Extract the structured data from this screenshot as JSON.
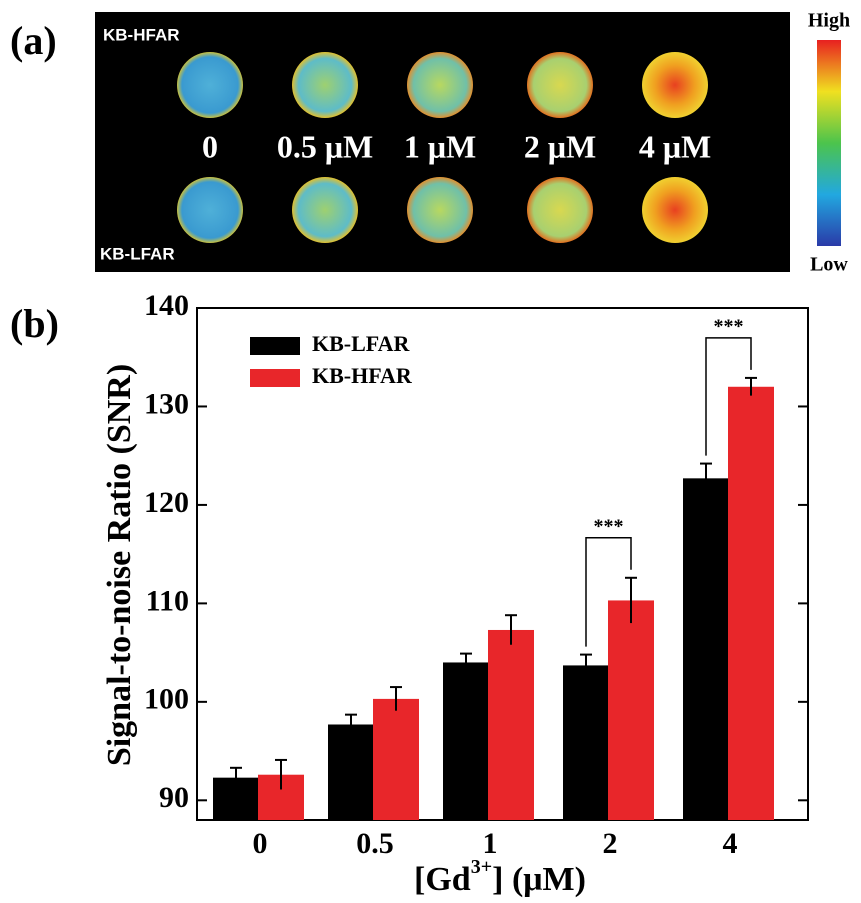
{
  "panel_a": {
    "label": "(a)",
    "top_row": "KB-HFAR",
    "bottom_row": "KB-LFAR",
    "concentrations": [
      "0",
      "0.5 μM",
      "1 μM",
      "2 μM",
      "4 μM"
    ],
    "colorbar_high": "High",
    "colorbar_low": "Low"
  },
  "chart_data": {
    "type": "bar",
    "panel_label": "(b)",
    "y_label": "Signal-to-noise Ratio (SNR)",
    "x_label": [
      "[Gd",
      "3+",
      "] (μM)"
    ],
    "categories": [
      "0",
      "0.5",
      "1",
      "2",
      "4"
    ],
    "series": [
      {
        "name": "KB-LFAR",
        "color": "#000000",
        "values": [
          92.3,
          97.7,
          104.0,
          103.7,
          122.7
        ],
        "errors": [
          1.0,
          1.0,
          0.9,
          1.1,
          1.5
        ]
      },
      {
        "name": "KB-HFAR",
        "color": "#e8262a",
        "values": [
          92.6,
          100.3,
          107.3,
          110.3,
          132.0
        ],
        "errors": [
          1.5,
          1.2,
          1.5,
          2.3,
          0.9
        ]
      }
    ],
    "ylim": [
      88,
      140
    ],
    "yticks": [
      90,
      100,
      110,
      120,
      130,
      140
    ],
    "annotations": [
      {
        "text": "***",
        "category": "2"
      },
      {
        "text": "***",
        "category": "4"
      }
    ]
  }
}
